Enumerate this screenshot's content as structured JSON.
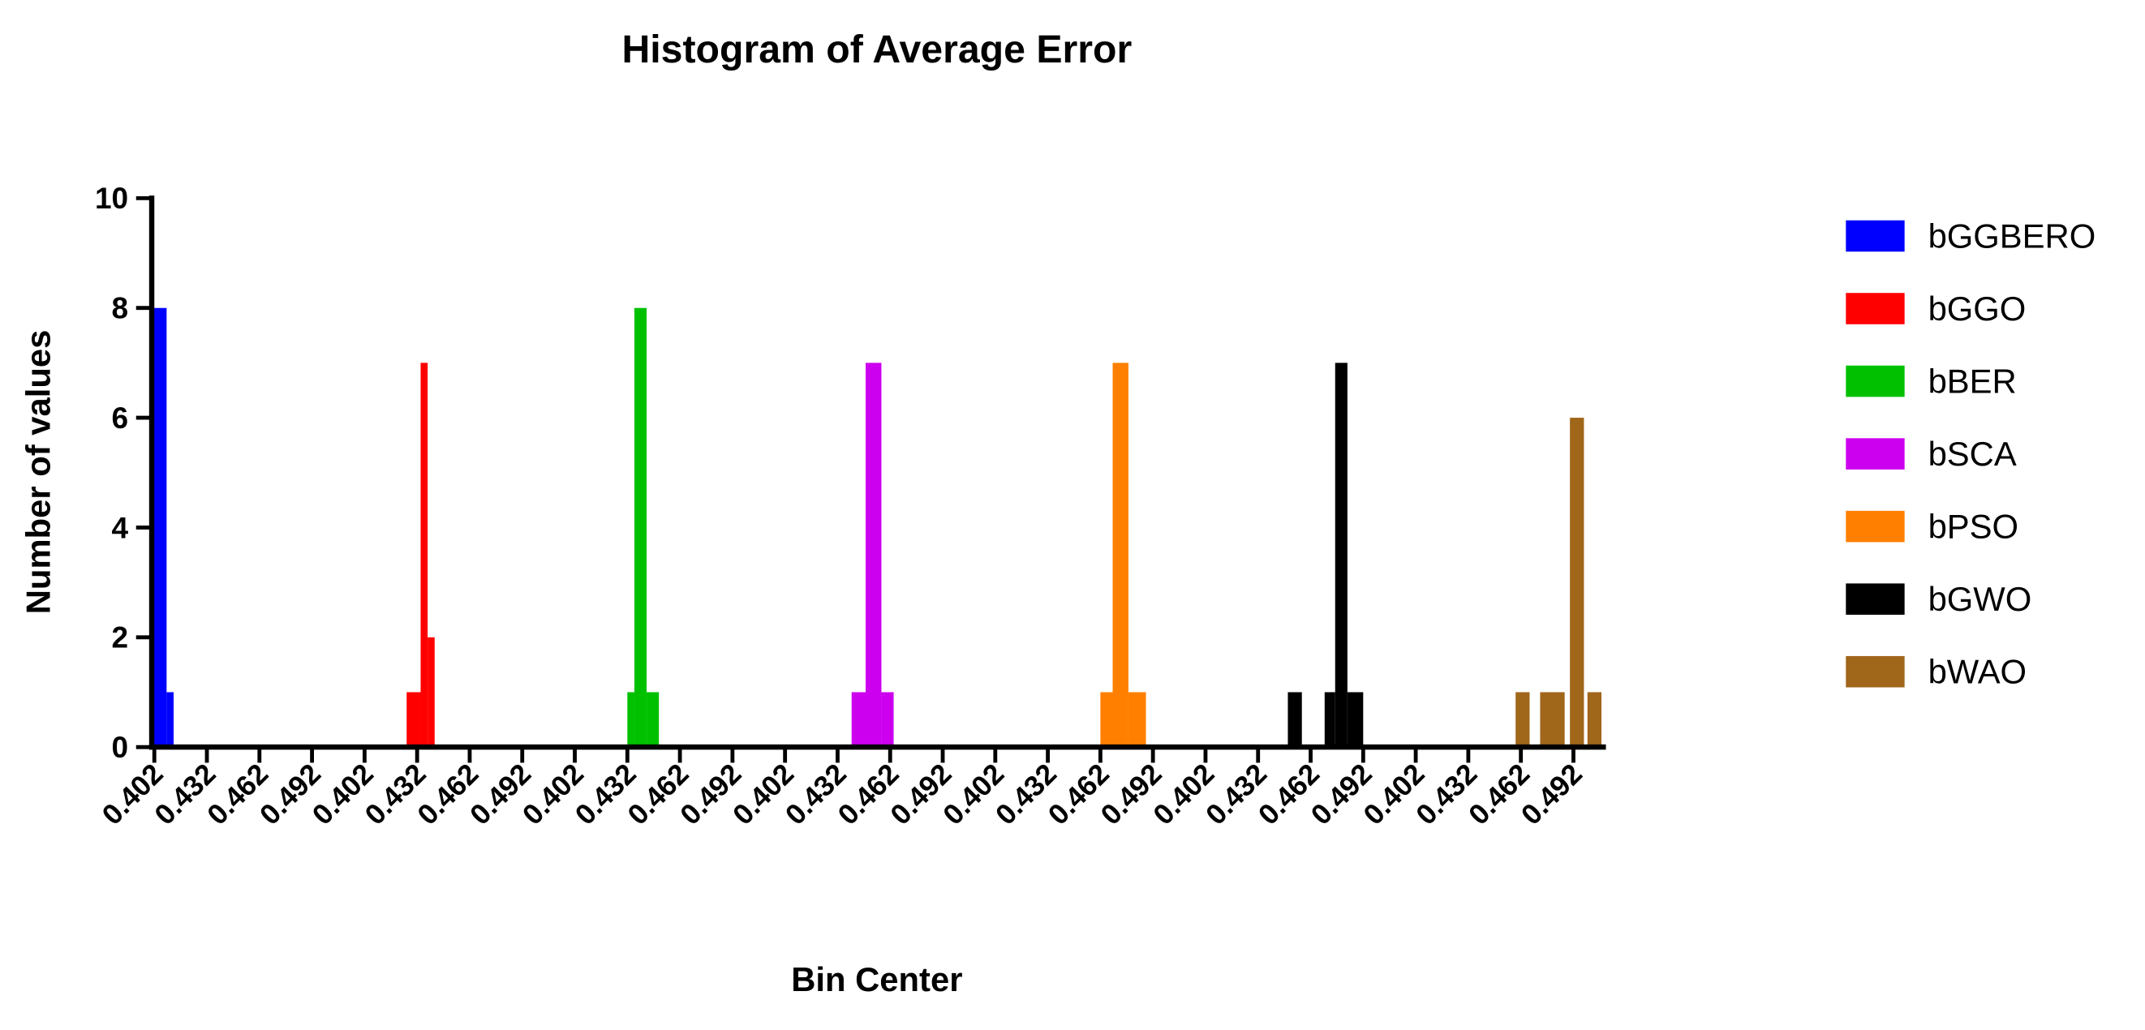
{
  "chart_data": {
    "type": "histogram",
    "title": "Histogram of Average Error",
    "x_label": "Bin Center",
    "y_label": "Number of values",
    "xlim": [
      0.4,
      0.52
    ],
    "xticks": [
      0.402,
      0.432,
      0.462,
      0.492
    ],
    "ylim": [
      0,
      10
    ],
    "yticks": [
      0,
      2,
      4,
      6,
      8,
      10
    ],
    "series": [
      {
        "name": "bGGBERO",
        "color": "#0000ff",
        "bins": [
          0.401,
          0.409,
          0.413
        ],
        "values": [
          8,
          1
        ]
      },
      {
        "name": "bGGO",
        "color": "#ff0000",
        "bins": [
          0.426,
          0.434,
          0.438,
          0.442
        ],
        "values": [
          1,
          7,
          2
        ]
      },
      {
        "name": "bBER",
        "color": "#00c000",
        "bins": [
          0.432,
          0.436,
          0.443,
          0.45
        ],
        "values": [
          1,
          8,
          1
        ]
      },
      {
        "name": "bSCA",
        "color": "#cc00ee",
        "bins": [
          0.44,
          0.448,
          0.457,
          0.464
        ],
        "values": [
          1,
          7,
          1
        ]
      },
      {
        "name": "bPSO",
        "color": "#ff8000",
        "bins": [
          0.462,
          0.469,
          0.478,
          0.488
        ],
        "values": [
          1,
          7,
          1
        ]
      },
      {
        "name": "bGWO",
        "color": "#000000",
        "bins": [
          0.449,
          0.457,
          0.47,
          0.476,
          0.483,
          0.492
        ],
        "values": [
          1,
          0,
          1,
          7,
          1
        ]
      },
      {
        "name": "bWAO",
        "color": "#a0661a",
        "bins": [
          0.459,
          0.467,
          0.473,
          0.487,
          0.49,
          0.498,
          0.5,
          0.508
        ],
        "values": [
          1,
          0,
          1,
          0,
          6,
          0,
          1
        ]
      }
    ]
  }
}
